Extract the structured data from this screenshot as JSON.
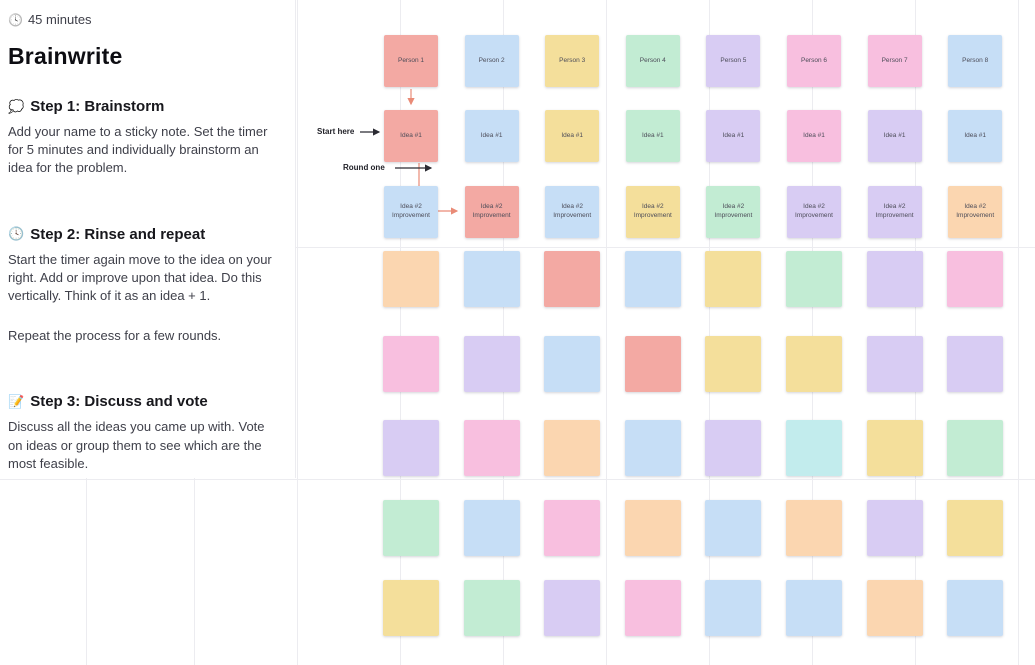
{
  "panel": {
    "timer_icon": "🕓",
    "timer": "45 minutes",
    "title": "Brainwrite",
    "steps": [
      {
        "icon": "💭",
        "heading": "Step 1: Brainstorm",
        "paragraphs": [
          "Add your name to a sticky note. Set the timer for 5 minutes and individually brainstorm an idea for the problem."
        ]
      },
      {
        "icon": "🕓",
        "heading": "Step 2: Rinse and repeat",
        "paragraphs": [
          "Start the timer again move to the idea on your right. Add or improve upon that idea. Do this vertically. Think of it as an idea + 1.",
          "Repeat the process for a few rounds."
        ]
      },
      {
        "icon": "📝",
        "heading": "Step 3: Discuss and vote",
        "paragraphs": [
          "Discuss all the ideas you came up with. Vote on ideas or group them to see which are the most feasible."
        ]
      }
    ]
  },
  "board": {
    "annotations": {
      "start_here": "Start here",
      "round_one": "Round one"
    },
    "palette": {
      "salmon": "#f3a9a3",
      "blue": "#c6def6",
      "yellow": "#f4df9b",
      "green": "#c2ecd3",
      "lavender": "#d8ccf3",
      "pink": "#f8bfdf",
      "peach": "#fbd6b0",
      "cyan": "#c2eced"
    },
    "rows": [
      {
        "name": "person",
        "labels": [
          "Person 1",
          "Person 2",
          "Person 3",
          "Person 4",
          "Person 5",
          "Person 6",
          "Person 7",
          "Person 8"
        ],
        "colors": [
          "salmon",
          "blue",
          "yellow",
          "green",
          "lavender",
          "pink",
          "pink",
          "blue"
        ]
      },
      {
        "name": "idea1",
        "labels": [
          "Idea #1",
          "Idea #1",
          "Idea #1",
          "Idea #1",
          "Idea #1",
          "Idea #1",
          "Idea #1",
          "Idea #1"
        ],
        "colors": [
          "salmon",
          "blue",
          "yellow",
          "green",
          "lavender",
          "pink",
          "lavender",
          "blue"
        ]
      },
      {
        "name": "idea2-improvement",
        "labels": [
          "Idea #2 Improvement",
          "Idea #2 Improvement",
          "Idea #2 Improvement",
          "Idea #2 Improvement",
          "Idea #2 Improvement",
          "Idea #2 Improvement",
          "Idea #2 Improvement",
          "Idea #2 Improvement"
        ],
        "colors": [
          "blue",
          "salmon",
          "blue",
          "yellow",
          "green",
          "lavender",
          "lavender",
          "peach"
        ]
      },
      {
        "name": "blank-1",
        "labels": [
          "",
          "",
          "",
          "",
          "",
          "",
          "",
          ""
        ],
        "colors": [
          "peach",
          "blue",
          "salmon",
          "blue",
          "yellow",
          "green",
          "lavender",
          "pink"
        ]
      },
      {
        "name": "blank-2",
        "labels": [
          "",
          "",
          "",
          "",
          "",
          "",
          "",
          ""
        ],
        "colors": [
          "pink",
          "lavender",
          "blue",
          "salmon",
          "yellow",
          "yellow",
          "lavender",
          "lavender"
        ]
      },
      {
        "name": "blank-3",
        "labels": [
          "",
          "",
          "",
          "",
          "",
          "",
          "",
          ""
        ],
        "colors": [
          "lavender",
          "pink",
          "peach",
          "blue",
          "lavender",
          "cyan",
          "yellow",
          "green"
        ]
      },
      {
        "name": "blank-4",
        "labels": [
          "",
          "",
          "",
          "",
          "",
          "",
          "",
          ""
        ],
        "colors": [
          "green",
          "blue",
          "pink",
          "peach",
          "blue",
          "peach",
          "lavender",
          "yellow"
        ]
      },
      {
        "name": "blank-5",
        "labels": [
          "",
          "",
          "",
          "",
          "",
          "",
          "",
          ""
        ],
        "colors": [
          "yellow",
          "green",
          "lavender",
          "pink",
          "blue",
          "blue",
          "peach",
          "blue"
        ]
      }
    ]
  },
  "colors": {
    "connector": "#e98b77",
    "annotation_arrow": "#2b2b33",
    "grid": "#ececf0"
  }
}
